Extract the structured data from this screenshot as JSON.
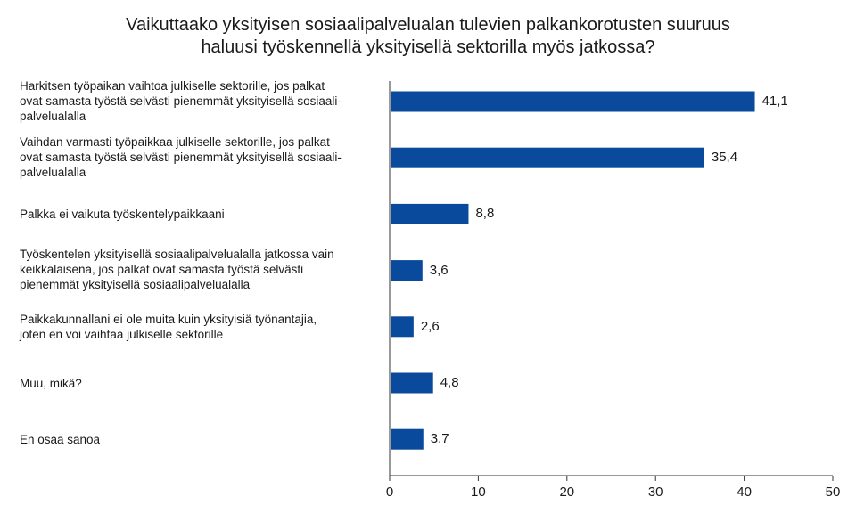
{
  "chart_data": {
    "type": "bar",
    "orientation": "horizontal",
    "title": [
      "Vaikuttaako yksityisen sosiaalipalvelualan tulevien palkankorotusten suuruus",
      "haluusi työskennellä yksityisellä sektorilla myös jatkossa?"
    ],
    "categories": [
      [
        "Harkitsen työpaikan vaihtoa julkiselle sektorille, jos palkat",
        "ovat samasta työstä selvästi pienemmät yksityisellä sosiaali-",
        "palvelualalla"
      ],
      [
        "Vaihdan varmasti työpaikkaa julkiselle sektorille, jos palkat",
        "ovat samasta työstä selvästi pienemmät yksityisellä sosiaali-",
        "palvelualalla"
      ],
      [
        "Palkka ei vaikuta työskentelypaikkaani"
      ],
      [
        "Työskentelen yksityisellä sosiaalipalvelualalla jatkossa vain",
        "keikkalaisena, jos palkat ovat samasta työstä selvästi",
        "pienemmät yksityisellä sosiaalipalvelualalla"
      ],
      [
        "Paikkakunnallani ei ole muita kuin yksityisiä työnantajia,",
        "joten en voi vaihtaa julkiselle sektorille"
      ],
      [
        "Muu, mikä?"
      ],
      [
        "En osaa sanoa"
      ]
    ],
    "values": [
      41.1,
      35.4,
      8.8,
      3.6,
      2.6,
      4.8,
      3.7
    ],
    "value_labels": [
      "41,1",
      "35,4",
      "8,8",
      "3,6",
      "2,6",
      "4,8",
      "3,7"
    ],
    "xlim": [
      0,
      50
    ],
    "xticks": [
      0,
      10,
      20,
      30,
      40,
      50
    ],
    "bar_color": "#0a4a9c",
    "grid": false,
    "legend": "none"
  }
}
